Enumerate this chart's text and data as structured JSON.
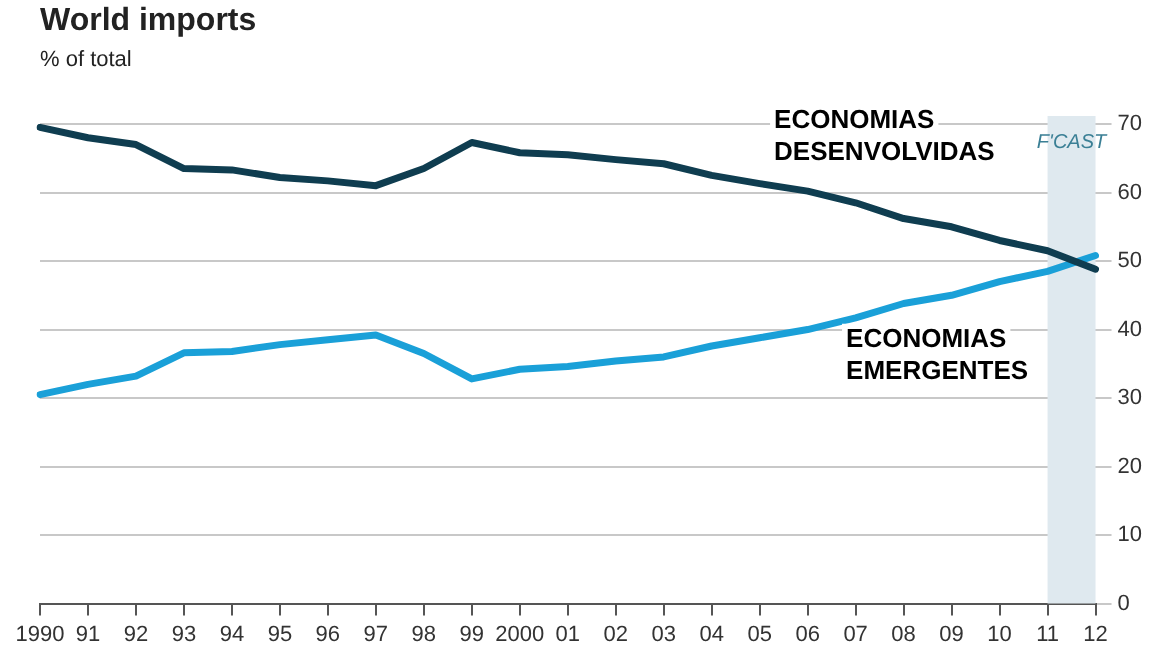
{
  "chart_data": {
    "type": "line",
    "title": "World imports",
    "subtitle": "% of total",
    "categories": [
      "1990",
      "91",
      "92",
      "93",
      "94",
      "95",
      "96",
      "97",
      "98",
      "99",
      "2000",
      "01",
      "02",
      "03",
      "04",
      "05",
      "06",
      "07",
      "08",
      "09",
      "10",
      "11",
      "12"
    ],
    "series": [
      {
        "name": "ECONOMIAS DESENVOLVIDAS",
        "color": "#0f3d50",
        "values": [
          69.5,
          68,
          67,
          63.5,
          63.3,
          62.2,
          61.7,
          61,
          63.5,
          67.3,
          65.8,
          65.5,
          64.8,
          64.2,
          62.5,
          61.3,
          60.2,
          58.5,
          56.2,
          55,
          53,
          51.5,
          48.8
        ]
      },
      {
        "name": "ECONOMIAS EMERGENTES",
        "color": "#1aa0d8",
        "values": [
          30.5,
          32,
          33.2,
          36.6,
          36.8,
          37.8,
          38.5,
          39.2,
          36.5,
          32.8,
          34.2,
          34.6,
          35.4,
          36,
          37.6,
          38.8,
          40,
          41.7,
          43.8,
          45,
          47,
          48.5,
          50.8
        ]
      }
    ],
    "ylim": [
      0,
      70
    ],
    "yticks": [
      0,
      10,
      20,
      30,
      40,
      50,
      60,
      70
    ],
    "grid": "y",
    "legend": false,
    "marker": "none",
    "line_style": "solid",
    "bands": [
      {
        "axis": "x",
        "from": "11",
        "to": "12",
        "label": "F'CAST",
        "color": "#dfe9ef"
      }
    ]
  }
}
